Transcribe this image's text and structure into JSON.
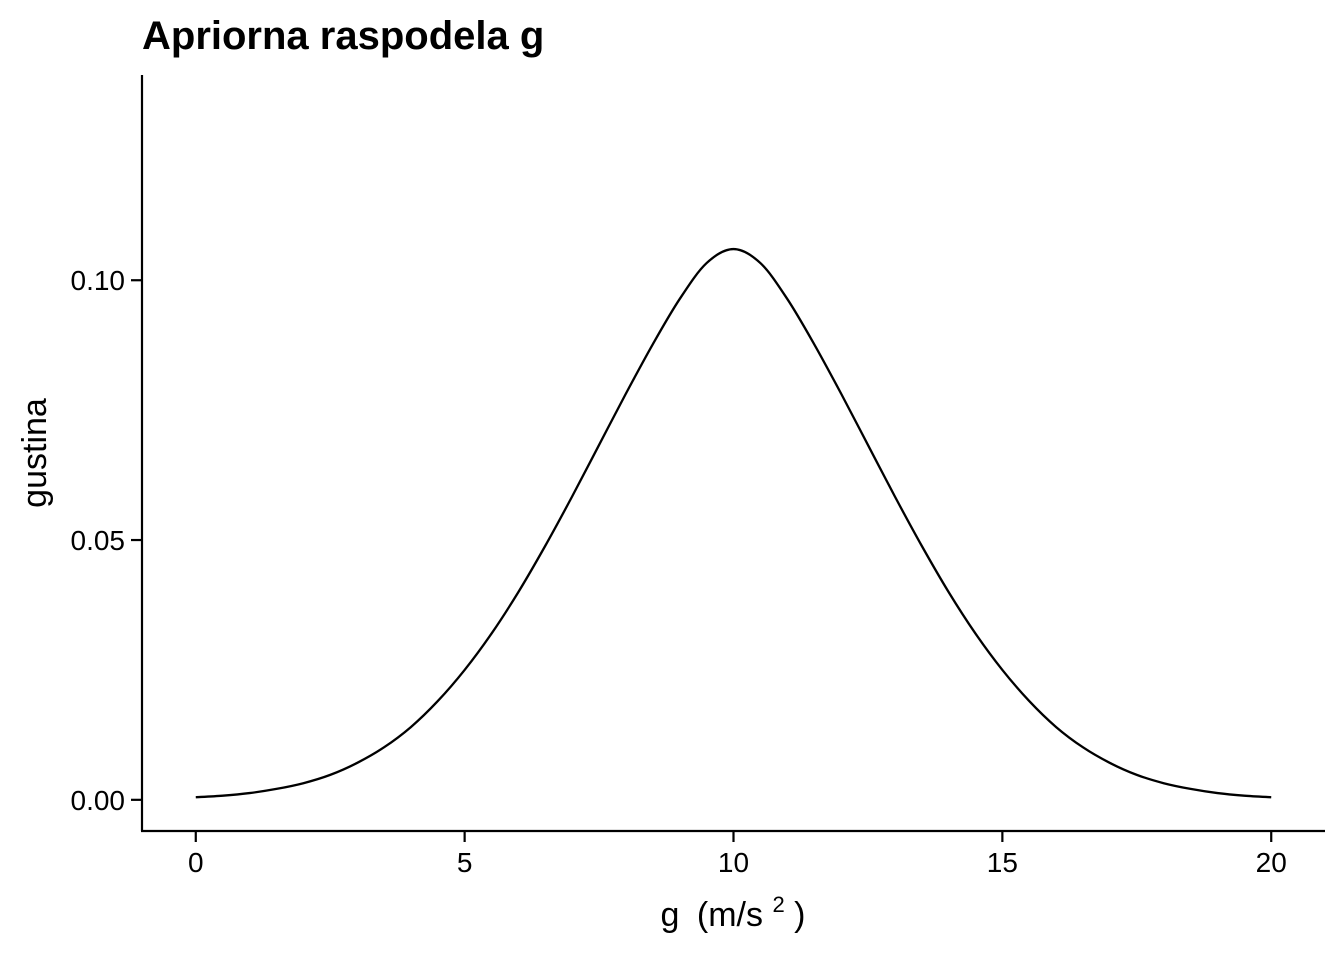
{
  "chart_data": {
    "type": "line",
    "title": "Apriorna raspodela g",
    "xlabel": "g",
    "xlabel_unit_open": "(m/s",
    "xlabel_unit_sup": "2",
    "xlabel_unit_close": ")",
    "ylabel": "gustina",
    "xlim": [
      -1,
      21
    ],
    "ylim": [
      -0.006,
      0.1395
    ],
    "x_ticks": [
      {
        "value": 0,
        "label": "0"
      },
      {
        "value": 5,
        "label": "5"
      },
      {
        "value": 10,
        "label": "10"
      },
      {
        "value": 15,
        "label": "15"
      },
      {
        "value": 20,
        "label": "20"
      }
    ],
    "y_ticks": [
      {
        "value": 0.0,
        "label": "0.00"
      },
      {
        "value": 0.05,
        "label": "0.05"
      },
      {
        "value": 0.1,
        "label": "0.10"
      }
    ],
    "grid": false,
    "line_color": "#000000",
    "series": [
      {
        "x": [
          0,
          0.5,
          1,
          1.5,
          2,
          2.5,
          3,
          3.5,
          4,
          4.5,
          5,
          5.5,
          6,
          6.5,
          7,
          7.5,
          8,
          8.5,
          9,
          9.5,
          10,
          10.5,
          11,
          11.5,
          12,
          12.5,
          13,
          13.5,
          14,
          14.5,
          15,
          15.5,
          16,
          16.5,
          17,
          17.5,
          18,
          18.5,
          19,
          19.5,
          20
        ],
        "y": [
          0.0005,
          0.0008,
          0.0013,
          0.0021,
          0.0032,
          0.0048,
          0.0071,
          0.0101,
          0.014,
          0.019,
          0.025,
          0.032,
          0.04,
          0.0489,
          0.0584,
          0.0683,
          0.0782,
          0.0877,
          0.0964,
          0.1033,
          0.106,
          0.1033,
          0.0964,
          0.0877,
          0.0782,
          0.0683,
          0.0584,
          0.0489,
          0.04,
          0.032,
          0.025,
          0.019,
          0.014,
          0.0101,
          0.0071,
          0.0048,
          0.0032,
          0.0021,
          0.0013,
          0.0008,
          0.0005
        ]
      }
    ]
  }
}
